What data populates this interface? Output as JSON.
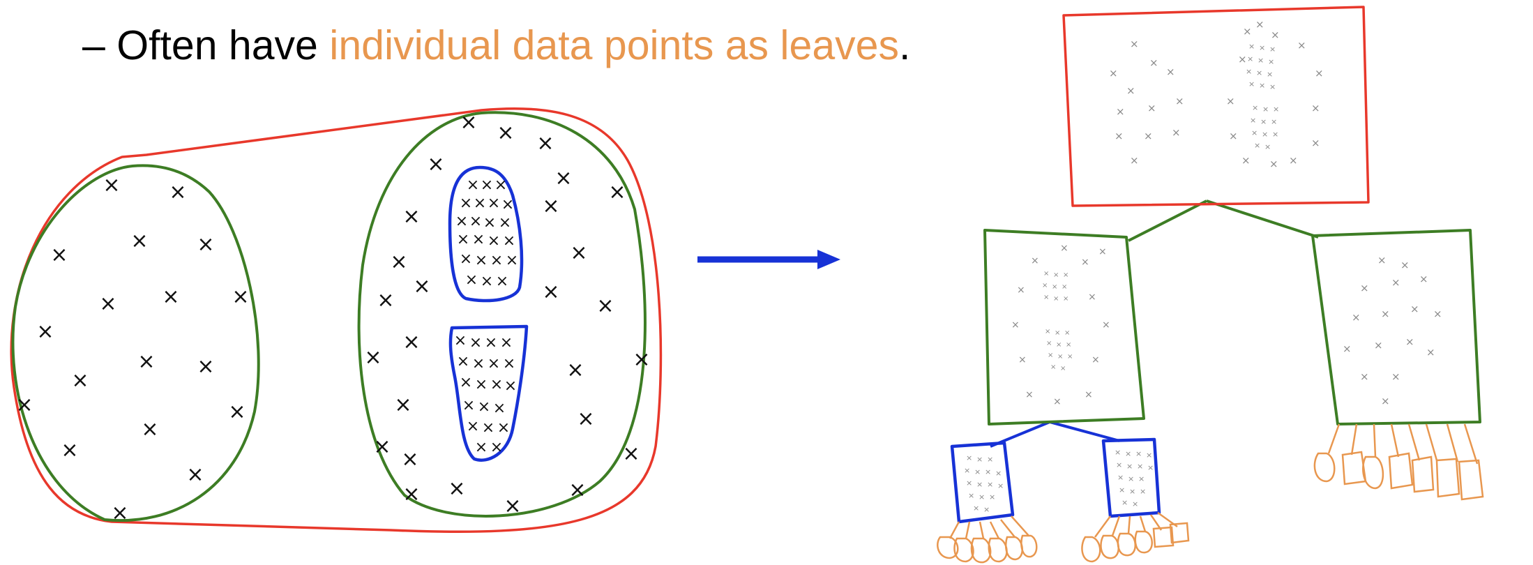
{
  "bullet": {
    "dash": "–",
    "prefix": "Often have ",
    "highlight": "individual data points as leaves",
    "suffix": "."
  },
  "colors": {
    "root_cluster": "#e8382b",
    "level1_cluster": "#3d7d24",
    "level2_cluster": "#1732d6",
    "leaf": "#e8974f",
    "arrow": "#1732d6",
    "highlight_text": "#e8974f"
  },
  "icons": {
    "point_marker": "x-mark",
    "arrow": "right-arrow-icon"
  }
}
